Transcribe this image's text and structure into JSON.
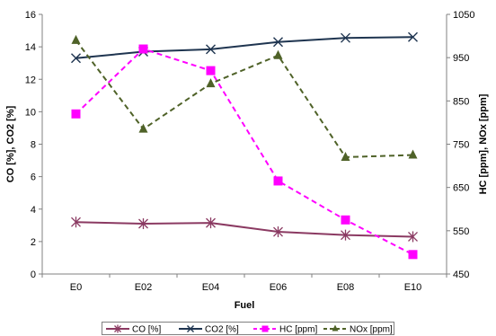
{
  "chart_data": {
    "type": "line",
    "categories": [
      "E0",
      "E02",
      "E04",
      "E06",
      "E08",
      "E10"
    ],
    "xlabel": "Fuel",
    "ylabel_left": "CO [%], CO2 [%]",
    "ylabel_right": "HC [ppm], NOx [ppm]",
    "ylim_left": [
      0,
      16
    ],
    "ylim_right": [
      450,
      1050
    ],
    "yticks_left": [
      "0",
      "2",
      "4",
      "6",
      "8",
      "10",
      "12",
      "14",
      "16"
    ],
    "yticks_right": [
      "450",
      "550",
      "650",
      "750",
      "850",
      "950",
      "1050"
    ],
    "legend_position": "bottom",
    "grid": false,
    "series": [
      {
        "name": "CO [%]",
        "axis": "left",
        "values": [
          3.2,
          3.1,
          3.15,
          2.6,
          2.4,
          2.3
        ],
        "color": "#8B3A62",
        "marker": "star",
        "dash": "solid"
      },
      {
        "name": "CO2 [%]",
        "axis": "left",
        "values": [
          13.3,
          13.7,
          13.85,
          14.3,
          14.55,
          14.6
        ],
        "color": "#1F3550",
        "marker": "x",
        "dash": "solid"
      },
      {
        "name": "HC [ppm]",
        "axis": "right",
        "values": [
          820,
          970,
          920,
          665,
          575,
          495
        ],
        "color": "#FF00FF",
        "marker": "square",
        "dash": "dashed"
      },
      {
        "name": "NOx [ppm]",
        "axis": "right",
        "values": [
          990,
          785,
          890,
          955,
          720,
          725
        ],
        "color": "#4F6228",
        "marker": "triangle",
        "dash": "dashed"
      }
    ]
  }
}
